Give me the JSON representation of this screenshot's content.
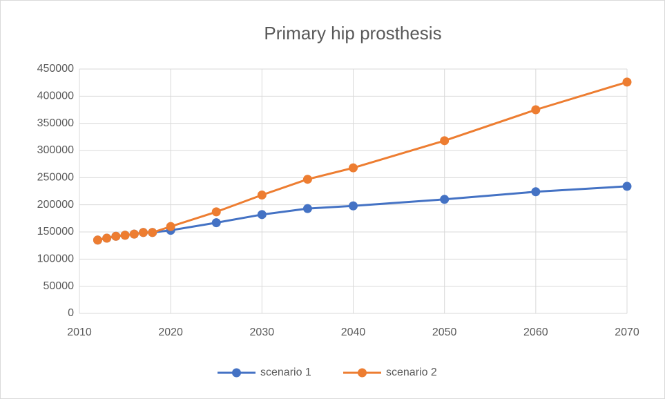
{
  "chart_data": {
    "type": "line",
    "title": "Primary hip prosthesis",
    "x": [
      2012,
      2013,
      2014,
      2015,
      2016,
      2017,
      2018,
      2020,
      2025,
      2030,
      2035,
      2040,
      2050,
      2060,
      2070
    ],
    "series": [
      {
        "name": "scenario 1",
        "color": "#4472c4",
        "values": [
          135000,
          138500,
          142000,
          144000,
          146000,
          149000,
          149000,
          153000,
          167000,
          182000,
          193000,
          198000,
          210000,
          224000,
          234000
        ]
      },
      {
        "name": "scenario 2",
        "color": "#ed7d31",
        "values": [
          135000,
          138500,
          142000,
          144000,
          146000,
          149000,
          149000,
          160000,
          187000,
          218000,
          247000,
          268000,
          318000,
          375000,
          426000
        ]
      }
    ],
    "xlim": [
      2010,
      2070
    ],
    "xticks": [
      2010,
      2020,
      2030,
      2040,
      2050,
      2060,
      2070
    ],
    "ylim": [
      0,
      450000
    ],
    "yticks": [
      0,
      50000,
      100000,
      150000,
      200000,
      250000,
      300000,
      350000,
      400000,
      450000
    ],
    "grid": true,
    "legend": "bottom"
  }
}
